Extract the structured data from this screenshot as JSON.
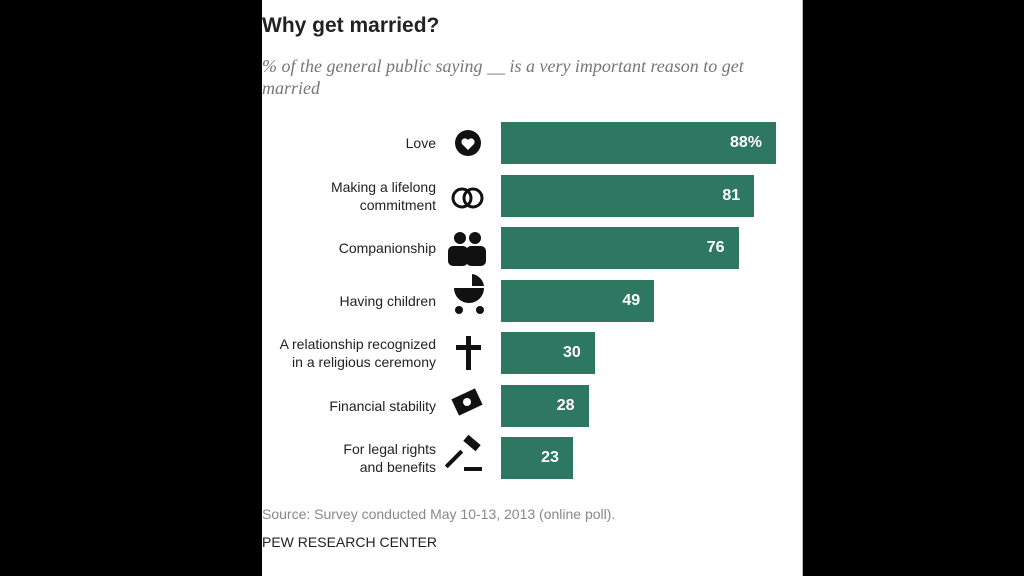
{
  "chart_data": {
    "type": "bar",
    "title": "Why get married?",
    "subtitle": "% of the general public saying __ is a very important reason to get married",
    "categories": [
      "Love",
      "Making a lifelong\ncommitment",
      "Companionship",
      "Having children",
      "A relationship recognized\nin a religious ceremony",
      "Financial stability",
      "For legal rights\nand benefits"
    ],
    "values": [
      88,
      81,
      76,
      49,
      30,
      28,
      23
    ],
    "value_labels": [
      "88%",
      "81",
      "76",
      "49",
      "30",
      "28",
      "23"
    ],
    "color": "#2e7760",
    "source": "Source: Survey conducted May 10-13, 2013 (online poll).",
    "footer": "PEW RESEARCH CENTER"
  }
}
